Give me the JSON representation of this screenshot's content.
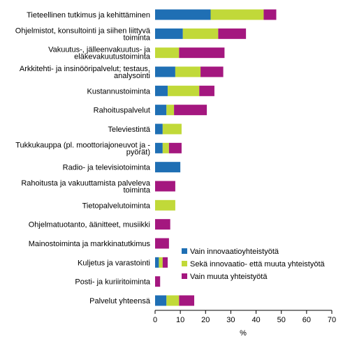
{
  "chart_data": {
    "type": "bar",
    "orientation": "horizontal",
    "stacked": true,
    "categories": [
      [
        "Tieteellinen tutkimus ja kehittäminen"
      ],
      [
        "Ohjelmistot, konsultointi ja siihen liittyvä",
        "toiminta"
      ],
      [
        "Vakuutus-, jälleenvakuutus- ja",
        "eläkevakuutustoiminta"
      ],
      [
        "Arkkitehti- ja insinööripalvelut; testaus,",
        "analysointi"
      ],
      [
        "Kustannustoiminta"
      ],
      [
        "Rahoituspalvelut"
      ],
      [
        "Televiestintä"
      ],
      [
        "Tukkukauppa (pl. moottoriajoneuvot ja -",
        "pyörät)"
      ],
      [
        "Radio- ja televisiotoiminta"
      ],
      [
        "Rahoitusta ja vakuuttamista palveleva",
        "toiminta"
      ],
      [
        "Tietopalvelutoiminta"
      ],
      [
        "Ohjelmatuotanto, äänitteet, musiikki"
      ],
      [
        "Mainostoiminta ja markkinatutkimus"
      ],
      [
        "Kuljetus ja varastointi"
      ],
      [
        "Posti- ja kuriiritoiminta"
      ],
      [
        "Palvelut yhteensä"
      ]
    ],
    "series": [
      {
        "name": "Vain innovaatioyhteistyötä",
        "color": "#1f6fb4",
        "values": [
          22,
          11,
          0,
          8,
          5,
          4.5,
          3,
          3,
          10,
          0,
          0,
          0,
          0,
          1.5,
          0,
          4.5
        ]
      },
      {
        "name": "Sekä innovaatio- että muuta yhteistyötä",
        "color": "#c1d939",
        "values": [
          21,
          14,
          9.5,
          10,
          12.5,
          3,
          7.5,
          2.5,
          0,
          0,
          8,
          0,
          0,
          1.5,
          0,
          5
        ]
      },
      {
        "name": "Vain muuta yhteistyötä",
        "color": "#a4177f",
        "values": [
          5,
          11,
          18,
          9,
          6,
          13,
          0,
          5,
          0,
          8,
          0,
          6,
          5.5,
          2,
          2,
          6
        ]
      }
    ],
    "xlabel": "%",
    "ylabel": "",
    "xlim": [
      0,
      70
    ],
    "xticks": [
      0,
      10,
      20,
      30,
      40,
      50,
      60,
      70
    ],
    "grid": false,
    "legend_position": "bottom-right"
  }
}
